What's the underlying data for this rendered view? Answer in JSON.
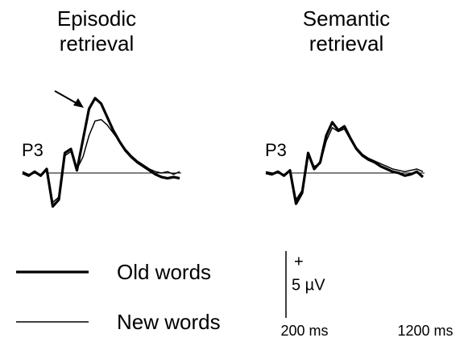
{
  "chart_data": [
    {
      "type": "line",
      "title": "Episodic retrieval",
      "channel": "P3",
      "x": [
        -200,
        -150,
        -100,
        -50,
        0,
        50,
        100,
        150,
        200,
        250,
        300,
        350,
        400,
        450,
        500,
        550,
        600,
        650,
        700,
        750,
        800,
        850,
        900,
        950,
        1000,
        1050,
        1100
      ],
      "series": [
        {
          "name": "Old words",
          "color": "#000000",
          "line_width": 3.2,
          "values": [
            0,
            -0.2,
            0.1,
            -0.2,
            0.3,
            -2.5,
            -2.0,
            1.5,
            1.8,
            0.2,
            2.5,
            4.8,
            5.6,
            5.2,
            4.2,
            3.2,
            2.4,
            1.7,
            1.2,
            0.8,
            0.5,
            0.2,
            -0.1,
            -0.3,
            -0.4,
            -0.3,
            -0.4
          ]
        },
        {
          "name": "New words",
          "color": "#000000",
          "line_width": 1.5,
          "values": [
            0.1,
            -0.1,
            0,
            -0.1,
            0.2,
            -2.2,
            -1.8,
            1.3,
            1.6,
            0.3,
            1.2,
            2.8,
            3.9,
            4.0,
            3.6,
            3.0,
            2.4,
            1.8,
            1.3,
            0.9,
            0.6,
            0.3,
            0.1,
            0,
            0.1,
            -0.1,
            0.1
          ]
        }
      ]
    },
    {
      "type": "line",
      "title": "Semantic retrieval",
      "channel": "P3",
      "x": [
        -200,
        -150,
        -100,
        -50,
        0,
        50,
        100,
        150,
        200,
        250,
        300,
        350,
        400,
        450,
        500,
        550,
        600,
        650,
        700,
        750,
        800,
        850,
        900,
        950,
        1000,
        1050,
        1100
      ],
      "series": [
        {
          "name": "Old words",
          "color": "#000000",
          "line_width": 3.2,
          "values": [
            0,
            -0.1,
            0.1,
            -0.2,
            0.2,
            -2.3,
            -1.5,
            1.5,
            0.3,
            0.8,
            2.8,
            3.8,
            3.2,
            3.5,
            2.6,
            1.8,
            1.3,
            1.0,
            0.8,
            0.5,
            0.3,
            0.1,
            0,
            -0.2,
            -0.1,
            0.1,
            -0.3
          ]
        },
        {
          "name": "New words",
          "color": "#000000",
          "line_width": 1.5,
          "values": [
            0.1,
            0,
            0,
            -0.1,
            0.1,
            -2.0,
            -1.3,
            1.3,
            0.5,
            0.7,
            2.4,
            3.4,
            3.1,
            3.3,
            2.5,
            1.9,
            1.4,
            1.1,
            0.9,
            0.7,
            0.5,
            0.3,
            0.2,
            0.1,
            0.2,
            0.3,
            0.1
          ]
        }
      ]
    }
  ],
  "scale_bar": {
    "sign": "+",
    "y": {
      "value": 5,
      "label": "5 µV"
    },
    "xticks": [
      {
        "value": 200,
        "label": "200 ms"
      },
      {
        "value": 1200,
        "label": "1200 ms"
      }
    ]
  }
}
